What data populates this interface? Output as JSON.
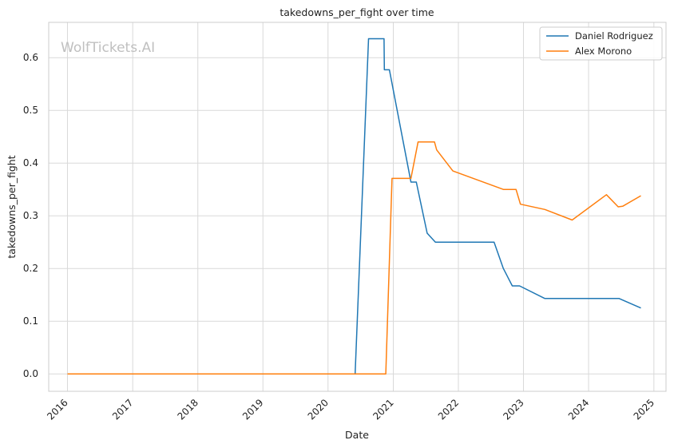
{
  "chart_data": {
    "type": "line",
    "title": "takedowns_per_fight over time",
    "xlabel": "Date",
    "ylabel": "takedowns_per_fight",
    "watermark": "WolfTickets.AI",
    "x_ticks": [
      "2016",
      "2017",
      "2018",
      "2019",
      "2020",
      "2021",
      "2022",
      "2023",
      "2024",
      "2025"
    ],
    "y_ticks": [
      "0.0",
      "0.1",
      "0.2",
      "0.3",
      "0.4",
      "0.5",
      "0.6"
    ],
    "xlim": [
      "2015-09-18",
      "2025-03-10"
    ],
    "ylim": [
      -0.033,
      0.667
    ],
    "grid": true,
    "legend_position": "top-right",
    "series": [
      {
        "name": "Daniel Rodriguez",
        "color": "#1f77b4",
        "points": [
          [
            "2016-01-01",
            0.0
          ],
          [
            "2020-06-01",
            0.0
          ],
          [
            "2020-08-15",
            0.636
          ],
          [
            "2020-11-10",
            0.636
          ],
          [
            "2020-11-12",
            0.577
          ],
          [
            "2020-12-10",
            0.577
          ],
          [
            "2021-04-10",
            0.364
          ],
          [
            "2021-05-10",
            0.364
          ],
          [
            "2021-07-10",
            0.267
          ],
          [
            "2021-08-25",
            0.25
          ],
          [
            "2022-07-20",
            0.25
          ],
          [
            "2022-09-10",
            0.2
          ],
          [
            "2022-10-30",
            0.167
          ],
          [
            "2022-12-10",
            0.167
          ],
          [
            "2023-05-01",
            0.143
          ],
          [
            "2024-06-20",
            0.143
          ],
          [
            "2024-10-20",
            0.125
          ]
        ]
      },
      {
        "name": "Alex Morono",
        "color": "#ff7f0e",
        "points": [
          [
            "2016-01-01",
            0.0
          ],
          [
            "2020-11-20",
            0.0
          ],
          [
            "2020-12-25",
            0.371
          ],
          [
            "2021-04-10",
            0.371
          ],
          [
            "2021-05-20",
            0.44
          ],
          [
            "2021-08-20",
            0.44
          ],
          [
            "2021-09-01",
            0.425
          ],
          [
            "2021-12-01",
            0.385
          ],
          [
            "2022-09-10",
            0.35
          ],
          [
            "2022-11-20",
            0.35
          ],
          [
            "2022-12-15",
            0.322
          ],
          [
            "2023-05-01",
            0.312
          ],
          [
            "2023-10-01",
            0.292
          ],
          [
            "2024-04-10",
            0.34
          ],
          [
            "2024-06-15",
            0.317
          ],
          [
            "2024-07-10",
            0.318
          ],
          [
            "2024-10-20",
            0.338
          ]
        ]
      }
    ]
  }
}
